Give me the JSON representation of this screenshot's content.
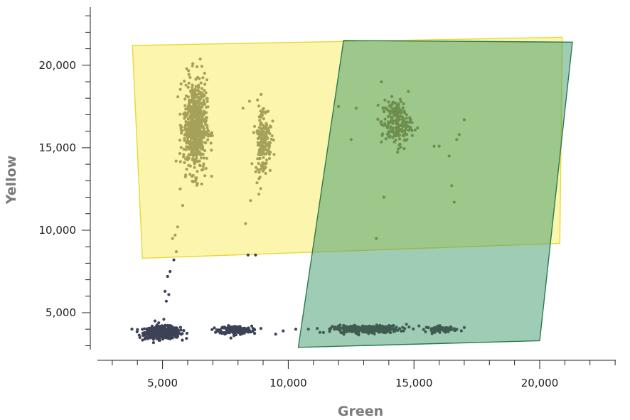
{
  "chart_data": {
    "type": "scatter",
    "title": "",
    "xlabel": "Green",
    "ylabel": "Yellow",
    "xlim": [
      2500,
      23500
    ],
    "ylim": [
      2500,
      23500
    ],
    "x_ticks": [
      5000,
      10000,
      15000,
      20000
    ],
    "x_tick_labels": [
      "5,000",
      "10,000",
      "15,000",
      "20,000"
    ],
    "y_ticks": [
      5000,
      10000,
      15000,
      20000
    ],
    "y_tick_labels": [
      "5,000",
      "10,000",
      "15,000",
      "20,000"
    ],
    "x_minor_step": 1000,
    "y_minor_step": 1000,
    "grid": false,
    "legend": "none",
    "gates": [
      {
        "color": "#f7e94a",
        "stroke": "#e8d93a",
        "opacity": 0.45,
        "vertices": [
          [
            3800,
            21200
          ],
          [
            20900,
            21700
          ],
          [
            20800,
            9200
          ],
          [
            4200,
            8300
          ]
        ]
      },
      {
        "color": "#3f9a6a",
        "stroke": "#2a7a50",
        "opacity": 0.5,
        "vertices": [
          [
            12200,
            21500
          ],
          [
            21300,
            21400
          ],
          [
            20000,
            3300
          ],
          [
            10400,
            2900
          ]
        ]
      }
    ],
    "point_colors": {
      "low": "#3d4256",
      "high_yellow": "#a6a15a",
      "high_green": "#6d8e4c",
      "low_green": "#3f5c52"
    },
    "clusters": [
      {
        "name": "",
        "color_key": "low",
        "center": [
          5000,
          3800
        ],
        "spread": [
          350,
          180
        ],
        "count": 500
      },
      {
        "name": "",
        "color_key": "low",
        "center": [
          7900,
          3950
        ],
        "spread": [
          320,
          120
        ],
        "count": 220
      },
      {
        "name": "",
        "color_key": "low_green",
        "center": [
          13100,
          4000
        ],
        "spread": [
          650,
          110
        ],
        "count": 350
      },
      {
        "name": "",
        "color_key": "low_green",
        "center": [
          16100,
          4000
        ],
        "spread": [
          300,
          90
        ],
        "count": 80
      },
      {
        "name": "",
        "color_key": "high_yellow",
        "center": [
          6300,
          16300
        ],
        "spread": [
          230,
          1400
        ],
        "count": 650
      },
      {
        "name": "",
        "color_key": "high_yellow",
        "center": [
          9000,
          15500
        ],
        "spread": [
          160,
          1100
        ],
        "count": 180
      },
      {
        "name": "",
        "color_key": "high_green",
        "center": [
          14300,
          16500
        ],
        "spread": [
          300,
          700
        ],
        "count": 200
      }
    ],
    "scattered_points": [
      [
        5700,
        12500,
        "high_yellow"
      ],
      [
        5800,
        11500,
        "high_yellow"
      ],
      [
        5600,
        10200,
        "high_yellow"
      ],
      [
        5500,
        9700,
        "high_yellow"
      ],
      [
        5400,
        9500,
        "high_yellow"
      ],
      [
        5550,
        8700,
        "high_yellow"
      ],
      [
        5450,
        8200,
        "low"
      ],
      [
        5300,
        7500,
        "low"
      ],
      [
        5200,
        7200,
        "low"
      ],
      [
        5100,
        6300,
        "low"
      ],
      [
        5250,
        6100,
        "low"
      ],
      [
        5150,
        5700,
        "low"
      ],
      [
        5050,
        4600,
        "low"
      ],
      [
        4700,
        4500,
        "low"
      ],
      [
        8300,
        10400,
        "high_yellow"
      ],
      [
        8400,
        8500,
        "low"
      ],
      [
        8700,
        8500,
        "low"
      ],
      [
        8200,
        17400,
        "high_yellow"
      ],
      [
        8500,
        11800,
        "high_yellow"
      ],
      [
        13500,
        9500,
        "high_green"
      ],
      [
        13800,
        12000,
        "high_green"
      ],
      [
        12700,
        17400,
        "high_green"
      ],
      [
        15800,
        15100,
        "high_green"
      ],
      [
        16000,
        15100,
        "high_green"
      ],
      [
        16700,
        15500,
        "high_green"
      ],
      [
        16800,
        15800,
        "high_green"
      ],
      [
        17000,
        16700,
        "high_green"
      ],
      [
        16400,
        14500,
        "high_green"
      ],
      [
        16500,
        12700,
        "high_green"
      ],
      [
        16600,
        11700,
        "high_green"
      ],
      [
        12500,
        15500,
        "high_green"
      ],
      [
        12000,
        17500,
        "high_green"
      ],
      [
        11400,
        3800,
        "low_green"
      ],
      [
        10800,
        4000,
        "low_green"
      ],
      [
        10300,
        4000,
        "low"
      ],
      [
        9800,
        3900,
        "low"
      ],
      [
        9500,
        3700,
        "low"
      ],
      [
        17000,
        4100,
        "low_green"
      ],
      [
        14700,
        4300,
        "low_green"
      ],
      [
        15200,
        4200,
        "low_green"
      ],
      [
        4300,
        3400,
        "low"
      ],
      [
        4100,
        3500,
        "low"
      ]
    ]
  }
}
